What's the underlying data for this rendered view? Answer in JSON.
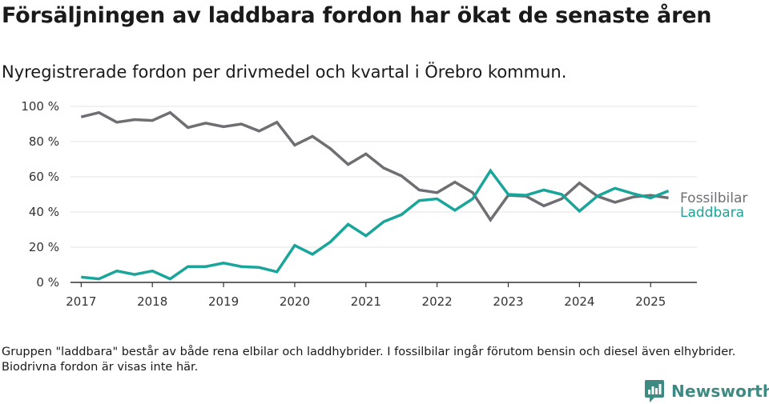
{
  "title": "Försäljningen av laddbara fordon har ökat de senaste åren",
  "subtitle": "Nyregistrerade fordon per drivmedel och kvartal i Örebro kommun.",
  "footnote": "Gruppen \"laddbara\" består av både rena elbilar och laddhybrider. I fossilbilar ingår förutom bensin och diesel även elhybrider. Biodrivna fordon är visas inte här.",
  "brand": {
    "name": "Newsworthy",
    "icon": "newsworthy-logo-icon",
    "color": "#3d8a82"
  },
  "chart_data": {
    "type": "line",
    "title": "",
    "xlabel": "",
    "ylabel": "",
    "y_tick_labels": [
      "0 %",
      "20 %",
      "40 %",
      "60 %",
      "80 %",
      "100 %"
    ],
    "y_ticks": [
      0,
      20,
      40,
      60,
      80,
      100
    ],
    "ylim": [
      0,
      100
    ],
    "x_tick_labels": [
      "2017",
      "2018",
      "2019",
      "2020",
      "2021",
      "2022",
      "2023",
      "2024",
      "2025"
    ],
    "x_ticks": [
      2017,
      2018,
      2019,
      2020,
      2021,
      2022,
      2023,
      2024,
      2025
    ],
    "xlim": [
      2016.85,
      2025.65
    ],
    "grid": true,
    "legend": "right, labels at line ends",
    "x": [
      2017.0,
      2017.25,
      2017.5,
      2017.75,
      2018.0,
      2018.25,
      2018.5,
      2018.75,
      2019.0,
      2019.25,
      2019.5,
      2019.75,
      2020.0,
      2020.25,
      2020.5,
      2020.75,
      2021.0,
      2021.25,
      2021.5,
      2021.75,
      2022.0,
      2022.25,
      2022.5,
      2022.75,
      2023.0,
      2023.25,
      2023.5,
      2023.75,
      2024.0,
      2024.25,
      2024.5,
      2024.75,
      2025.0,
      2025.25
    ],
    "series": [
      {
        "name": "Fossilbilar",
        "color": "#6f6e73",
        "values": [
          94,
          96.5,
          91,
          92.5,
          92,
          96.5,
          88,
          90.5,
          88.5,
          90,
          86,
          91,
          78,
          83,
          76,
          67,
          73,
          65,
          60.5,
          52.5,
          51,
          57,
          51,
          35.5,
          49.5,
          49,
          43.5,
          47.5,
          56.5,
          49,
          45.5,
          48.5,
          49.5,
          48
        ]
      },
      {
        "name": "Laddbara",
        "color": "#1aa59a",
        "values": [
          3,
          2,
          6.5,
          4.5,
          6.5,
          2,
          9,
          9,
          11,
          9,
          8.5,
          6,
          21,
          16,
          23,
          33,
          26.5,
          34.5,
          38.5,
          46.5,
          47.5,
          41,
          47.5,
          63.5,
          50,
          49.5,
          52.5,
          50,
          40.5,
          49,
          53.5,
          50.5,
          48,
          52
        ]
      }
    ]
  }
}
